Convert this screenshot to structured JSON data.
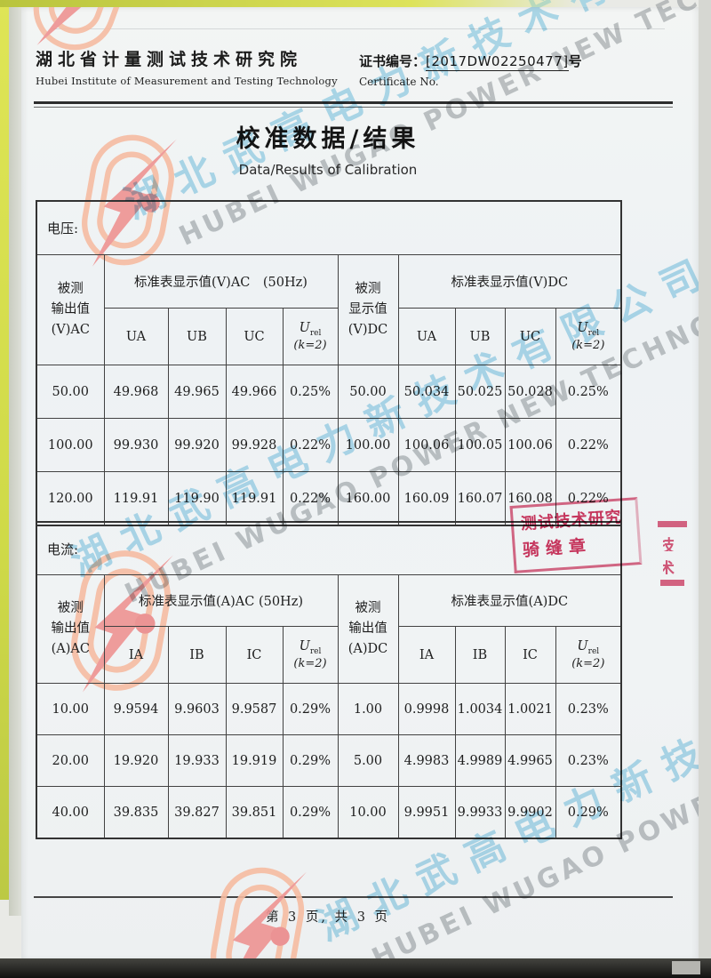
{
  "header": {
    "org_cn": "湖北省计量测试技术研究院",
    "org_en": "Hubei Institute of Measurement and Testing Technology",
    "cert_label": "证书编号：",
    "cert_no": "[2017DW02250477]",
    "cert_suffix": "号",
    "cert_label_en": "Certificate No."
  },
  "title": {
    "cn": "校准数据/结果",
    "en": "Data/Results of Calibration"
  },
  "watermark": {
    "cn": "湖北武高电力新技术有限公司",
    "en": "HUBEI WUGAO POWER NEW TECHNOLOGY CO.,LTD"
  },
  "stamp": {
    "line1": "测试技术研究",
    "line2": "骑缝章"
  },
  "edge_stamp": {
    "fragment1": "技",
    "fragment2": "术"
  },
  "symbols": {
    "u": "U",
    "u_sub": "rel",
    "k": "(k=2)"
  },
  "tables": {
    "voltage": {
      "section_label": "电压:",
      "col1": "被测\n输出值\n(V)AC",
      "ac_group": "标准表显示值(V)AC　(50Hz)",
      "col6": "被测\n显示值\n(V)DC",
      "dc_group": "标准表显示值(V)DC",
      "subcols": [
        "UA",
        "UB",
        "UC"
      ],
      "rows": [
        [
          "50.00",
          "49.968",
          "49.965",
          "49.966",
          "0.25%",
          "50.00",
          "50.034",
          "50.025",
          "50.028",
          "0.25%"
        ],
        [
          "100.00",
          "99.930",
          "99.920",
          "99.928",
          "0.22%",
          "100.00",
          "100.06",
          "100.05",
          "100.06",
          "0.22%"
        ],
        [
          "120.00",
          "119.91",
          "119.90",
          "119.91",
          "0.22%",
          "160.00",
          "160.09",
          "160.07",
          "160.08",
          "0.22%"
        ]
      ]
    },
    "current": {
      "section_label": "电流:",
      "col1": "被测\n输出值\n(A)AC",
      "ac_group": "标准表显示值(A)AC (50Hz)",
      "col6": "被测\n输出值\n(A)DC",
      "dc_group": "标准表显示值(A)DC",
      "subcols": [
        "IA",
        "IB",
        "IC"
      ],
      "rows": [
        [
          "10.00",
          "9.9594",
          "9.9603",
          "9.9587",
          "0.29%",
          "1.00",
          "0.9998",
          "1.0034",
          "1.0021",
          "0.23%"
        ],
        [
          "20.00",
          "19.920",
          "19.933",
          "19.919",
          "0.29%",
          "5.00",
          "4.9983",
          "4.9989",
          "4.9965",
          "0.23%"
        ],
        [
          "40.00",
          "39.835",
          "39.827",
          "39.851",
          "0.29%",
          "10.00",
          "9.9951",
          "9.9933",
          "9.9902",
          "0.29%"
        ]
      ]
    }
  },
  "footer": {
    "page_text": "第 3 页, 共 3 页"
  }
}
